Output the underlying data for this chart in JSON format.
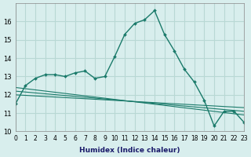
{
  "xlabel": "Humidex (Indice chaleur)",
  "background_color": "#d8eeed",
  "grid_color": "#b8d8d4",
  "line_color": "#1a7a6a",
  "xlim": [
    0,
    23
  ],
  "ylim": [
    10,
    17
  ],
  "yticks": [
    10,
    11,
    12,
    13,
    14,
    15,
    16
  ],
  "xticks": [
    0,
    1,
    2,
    3,
    4,
    5,
    6,
    7,
    8,
    9,
    10,
    11,
    12,
    13,
    14,
    15,
    16,
    17,
    18,
    19,
    20,
    21,
    22,
    23
  ],
  "series1_x": [
    0,
    1,
    2,
    3,
    4,
    5,
    6,
    7,
    8,
    9,
    10,
    11,
    12,
    13,
    14,
    15,
    16,
    17,
    18,
    19,
    20,
    21,
    22,
    23
  ],
  "series1_y": [
    11.5,
    12.5,
    12.9,
    13.1,
    13.1,
    13.0,
    13.2,
    13.3,
    12.9,
    13.0,
    14.1,
    15.3,
    15.9,
    16.1,
    16.6,
    15.3,
    14.4,
    13.4,
    12.7,
    11.7,
    10.3,
    11.1,
    11.1,
    10.5
  ],
  "series2_x": [
    0,
    23
  ],
  "series2_y": [
    12.0,
    11.3
  ],
  "series3_x": [
    0,
    23
  ],
  "series3_y": [
    12.2,
    11.1
  ],
  "series4_x": [
    0,
    23
  ],
  "series4_y": [
    12.4,
    10.9
  ]
}
